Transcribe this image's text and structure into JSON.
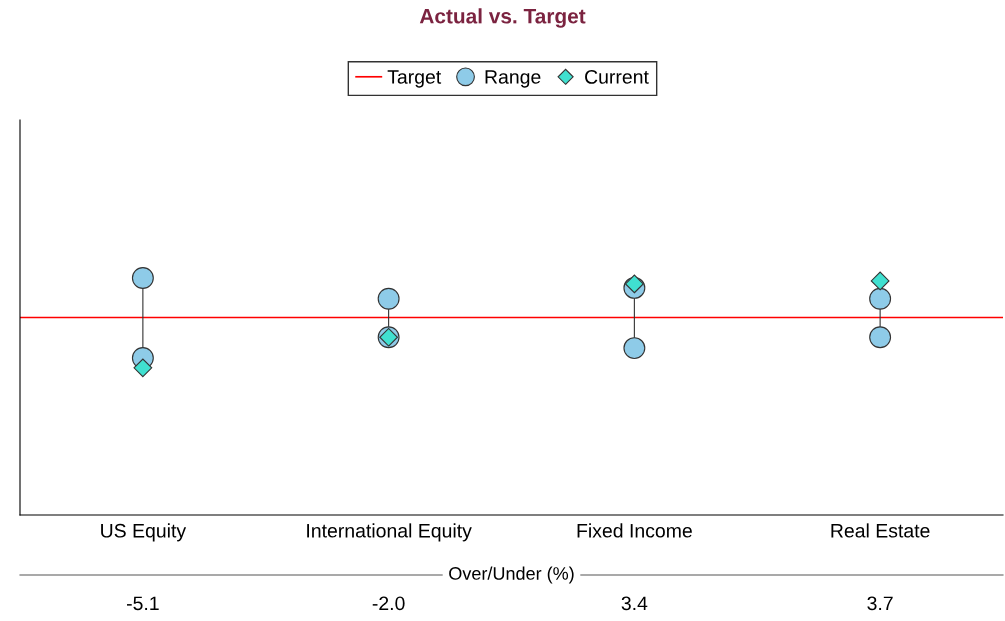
{
  "chart_data": {
    "type": "scatter",
    "title": "Actual vs. Target",
    "categories": [
      "US Equity",
      "International Equity",
      "Fixed Income",
      "Real Estate"
    ],
    "ylim": [
      -20,
      20
    ],
    "series": [
      {
        "name": "Range",
        "color": "#8ecbe8",
        "marker": "circle",
        "values": [
          4.0,
          1.9,
          3.0,
          1.9
        ]
      },
      {
        "color": "#8ecbe8",
        "marker": "circle",
        "values": [
          -4.1,
          -2.0,
          -3.1,
          -2.0
        ]
      },
      {
        "name": "Current",
        "color": "#40e0d0",
        "marker": "diamond",
        "values": [
          -5.1,
          -2.0,
          3.4,
          3.7
        ],
        "value_labels": [
          "-5.1",
          "-2.0",
          "3.4",
          "3.7"
        ]
      }
    ],
    "ref_lines": [
      {
        "axis": "y",
        "value": 0,
        "label": "Target",
        "color": "#ff0000"
      }
    ],
    "annotations": [
      "Over/Under (%)"
    ],
    "legend": "top"
  }
}
